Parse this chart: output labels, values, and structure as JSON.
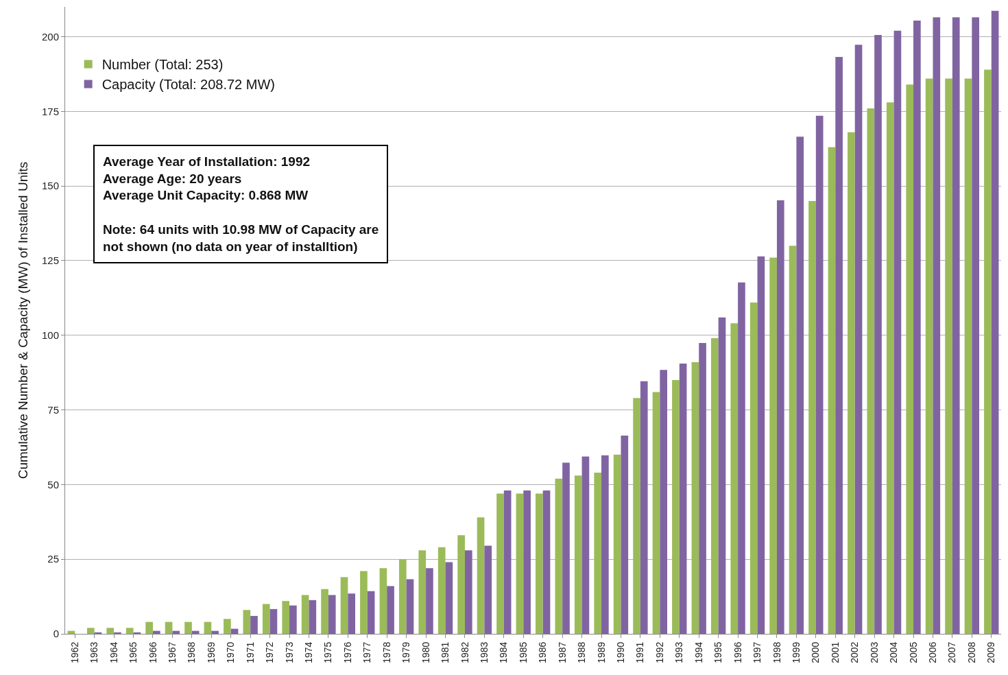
{
  "chart_data": {
    "type": "bar",
    "ylabel": "Cumulative Number & Capacity (MW) of Installed Units",
    "categories": [
      "1962",
      "1963",
      "1964",
      "1965",
      "1966",
      "1967",
      "1968",
      "1969",
      "1970",
      "1971",
      "1972",
      "1973",
      "1974",
      "1975",
      "1976",
      "1977",
      "1978",
      "1979",
      "1980",
      "1981",
      "1982",
      "1983",
      "1984",
      "1985",
      "1986",
      "1987",
      "1988",
      "1989",
      "1990",
      "1991",
      "1992",
      "1993",
      "1994",
      "1995",
      "1996",
      "1997",
      "1998",
      "1999",
      "2000",
      "2001",
      "2002",
      "2003",
      "2004",
      "2005",
      "2006",
      "2007",
      "2008",
      "2009"
    ],
    "series": [
      {
        "name": "Number (Total: 253)",
        "color": "#9bbb59",
        "values": [
          1,
          2,
          2,
          2,
          4,
          4,
          4,
          4,
          5,
          8,
          10,
          11,
          13,
          15,
          19,
          21,
          22,
          25,
          28,
          29,
          33,
          39,
          47,
          47,
          47,
          52,
          53,
          54,
          60,
          79,
          81,
          85,
          91,
          99,
          104,
          111,
          126,
          130,
          145,
          163,
          168,
          176,
          178,
          184,
          186,
          186,
          186,
          189
        ]
      },
      {
        "name": "Capacity (Total: 208.72 MW)",
        "color": "#8064a2",
        "values": [
          null,
          0.5,
          0.5,
          0.5,
          1,
          1,
          1,
          1,
          1.7,
          6,
          8.3,
          9.5,
          11.3,
          13,
          13.5,
          14.3,
          16,
          18.3,
          22,
          24,
          28,
          29.5,
          48,
          48,
          48,
          57.3,
          59.4,
          59.8,
          66.4,
          84.6,
          88.4,
          90.5,
          97.4,
          106,
          117.7,
          126.4,
          145.2,
          166.5,
          173.5,
          193.2,
          197.3,
          200.6,
          202,
          205.4,
          206.5,
          206.5,
          206.5,
          208.7
        ]
      }
    ],
    "ylim": [
      0,
      210
    ],
    "yticks": [
      0,
      25,
      50,
      75,
      100,
      125,
      150,
      175,
      200
    ],
    "grid": "y",
    "legend": "top left",
    "annotations": [
      "Average Year of Installation: 1992\nAverage Age: 20 years\nAverage Unit Capacity: 0.868 MW",
      "Note: 64 units with 10.98 MW of Capacity are\nnot shown (no data on year of installtion)"
    ]
  }
}
